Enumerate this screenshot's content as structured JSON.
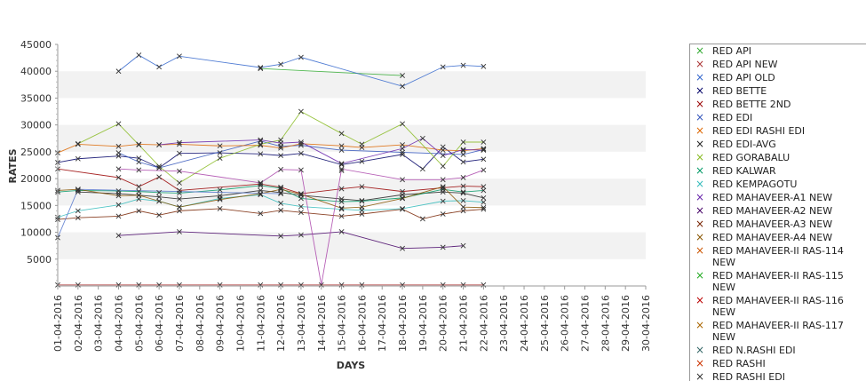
{
  "chart_data": {
    "type": "line",
    "title": "",
    "xlabel": "DAYS",
    "ylabel": "RATES",
    "ylim": [
      0,
      45000
    ],
    "y_ticks": [
      5000,
      10000,
      15000,
      20000,
      25000,
      30000,
      35000,
      40000,
      45000
    ],
    "grid": "alternating horizontal bands",
    "legend_position": "right",
    "marker": "x",
    "categories": [
      "01-04-2016",
      "02-04-2016",
      "03-04-2016",
      "04-04-2016",
      "05-04-2016",
      "06-04-2016",
      "07-04-2016",
      "08-04-2016",
      "09-04-2016",
      "10-04-2016",
      "11-04-2016",
      "12-04-2016",
      "13-04-2016",
      "14-04-2016",
      "15-04-2016",
      "16-04-2016",
      "17-04-2016",
      "18-04-2016",
      "19-04-2016",
      "20-04-2016",
      "21-04-2016",
      "22-04-2016",
      "23-04-2016",
      "24-04-2016",
      "25-04-2016",
      "26-04-2016",
      "27-04-2016",
      "28-04-2016",
      "29-04-2016",
      "30-04-2016"
    ],
    "series": [
      {
        "name": "RED API",
        "color": "#33aa33",
        "values": [
          null,
          null,
          null,
          null,
          null,
          null,
          null,
          null,
          null,
          null,
          40500,
          null,
          null,
          null,
          null,
          null,
          null,
          39200,
          null,
          null,
          null,
          null,
          null,
          null,
          null,
          null,
          null,
          null,
          null,
          null
        ]
      },
      {
        "name": "RED API NEW",
        "color": "#aa3333",
        "values": [
          200,
          200,
          null,
          200,
          200,
          200,
          200,
          null,
          200,
          null,
          200,
          200,
          200,
          null,
          200,
          200,
          null,
          200,
          null,
          200,
          200,
          200,
          null,
          null,
          null,
          null,
          null,
          null,
          null,
          null
        ]
      },
      {
        "name": "RED API OLD",
        "color": "#3366cc",
        "values": [
          null,
          null,
          null,
          40000,
          43000,
          40800,
          42800,
          null,
          null,
          null,
          40700,
          41300,
          42600,
          null,
          null,
          null,
          null,
          37200,
          null,
          40800,
          41100,
          40900,
          null,
          null,
          null,
          null,
          null,
          null,
          null,
          null
        ]
      },
      {
        "name": "RED BETTE",
        "color": "#000066",
        "values": [
          23000,
          23700,
          null,
          24200,
          23800,
          22000,
          24700,
          null,
          24800,
          null,
          24600,
          24300,
          24700,
          null,
          22600,
          23200,
          null,
          24500,
          21800,
          25900,
          23100,
          23600,
          null,
          null,
          null,
          null,
          null,
          null,
          null,
          null
        ]
      },
      {
        "name": "RED BETTE 2ND",
        "color": "#990000",
        "values": [
          21800,
          null,
          null,
          20200,
          18500,
          20300,
          17800,
          null,
          null,
          null,
          19000,
          18400,
          17200,
          null,
          18100,
          18500,
          null,
          17600,
          null,
          18300,
          18600,
          18500,
          null,
          null,
          null,
          null,
          null,
          null,
          null,
          null
        ]
      },
      {
        "name": "RED EDI",
        "color": "#3355bb",
        "values": [
          null,
          null,
          null,
          24800,
          23100,
          22000,
          null,
          null,
          null,
          null,
          27000,
          26000,
          26200,
          null,
          25300,
          null,
          null,
          24900,
          null,
          null,
          24500,
          25400,
          null,
          null,
          null,
          null,
          null,
          null,
          null,
          null
        ]
      },
      {
        "name": "RED EDI RASHI EDI",
        "color": "#dd6600",
        "values": [
          24800,
          26400,
          null,
          26000,
          26400,
          26300,
          26400,
          null,
          26100,
          null,
          26200,
          25700,
          26500,
          null,
          26100,
          25800,
          null,
          26300,
          null,
          25300,
          25200,
          25600,
          null,
          null,
          null,
          null,
          null,
          null,
          null,
          null
        ]
      },
      {
        "name": "RED EDI-AVG",
        "color": "#222222",
        "values": [
          null,
          17500,
          null,
          17200,
          16900,
          16600,
          16200,
          null,
          16800,
          null,
          17800,
          17400,
          16900,
          null,
          16200,
          15900,
          null,
          17000,
          null,
          17500,
          17300,
          16400,
          null,
          null,
          null,
          null,
          null,
          null,
          null,
          null
        ]
      },
      {
        "name": "RED GORABALU",
        "color": "#88bb22",
        "values": [
          null,
          26500,
          null,
          30200,
          26300,
          22300,
          19200,
          null,
          23800,
          null,
          26400,
          27200,
          32500,
          null,
          28400,
          26400,
          null,
          30200,
          null,
          22300,
          26800,
          26800,
          null,
          null,
          null,
          null,
          null,
          null,
          null,
          null
        ]
      },
      {
        "name": "RED KALWAR",
        "color": "#009966",
        "values": [
          17500,
          17800,
          null,
          17700,
          17600,
          17400,
          17300,
          null,
          17900,
          null,
          18700,
          18200,
          16300,
          null,
          15700,
          15800,
          null,
          16400,
          null,
          18000,
          17500,
          17800,
          null,
          null,
          null,
          null,
          null,
          null,
          null,
          null
        ]
      },
      {
        "name": "RED KEMPAGOTU",
        "color": "#33bbbb",
        "values": [
          12800,
          14000,
          null,
          15100,
          16200,
          15800,
          14700,
          null,
          16300,
          null,
          17000,
          15400,
          14800,
          null,
          14300,
          14100,
          null,
          14400,
          null,
          15800,
          15900,
          15600,
          null,
          null,
          null,
          null,
          null,
          null,
          null,
          null
        ]
      },
      {
        "name": "RED MAHAVEER-A1 NEW",
        "color": "#6622aa",
        "values": [
          null,
          null,
          null,
          null,
          null,
          26300,
          26700,
          null,
          null,
          null,
          27200,
          26600,
          26800,
          null,
          22800,
          null,
          null,
          25600,
          27500,
          24300,
          25400,
          25300,
          null,
          null,
          null,
          null,
          null,
          null,
          null,
          null
        ]
      },
      {
        "name": "RED MAHAVEER-A2 NEW",
        "color": "#440066",
        "values": [
          null,
          null,
          null,
          9400,
          null,
          null,
          10100,
          null,
          null,
          null,
          null,
          9300,
          9500,
          null,
          10100,
          null,
          null,
          7000,
          null,
          7200,
          7500,
          null,
          null,
          null,
          null,
          null,
          null,
          null,
          null,
          null
        ]
      },
      {
        "name": "RED MAHAVEER-A3 NEW",
        "color": "#772200",
        "values": [
          12400,
          12700,
          null,
          13000,
          14000,
          13200,
          14000,
          null,
          14400,
          null,
          13500,
          14100,
          13700,
          null,
          13000,
          13400,
          null,
          14300,
          12500,
          13400,
          14000,
          14300,
          null,
          null,
          null,
          null,
          null,
          null,
          null,
          null
        ]
      },
      {
        "name": "RED MAHAVEER-A4 NEW",
        "color": "#885500",
        "values": [
          17800,
          18000,
          null,
          16800,
          16900,
          15800,
          14700,
          null,
          16100,
          null,
          17200,
          18000,
          17100,
          null,
          14500,
          14700,
          null,
          16300,
          null,
          18500,
          14700,
          14600,
          null,
          null,
          null,
          null,
          null,
          null,
          null,
          null
        ]
      },
      {
        "name": "RED MAHAVEER-II RAS-114 NEW",
        "color": "#cc5500",
        "values": [
          null,
          null,
          null,
          null,
          null,
          null,
          null,
          null,
          null,
          null,
          null,
          null,
          null,
          null,
          null,
          null,
          null,
          null,
          null,
          null,
          null,
          null,
          null,
          null,
          null,
          null,
          null,
          null,
          null,
          null
        ]
      },
      {
        "name": "RED MAHAVEER-II RAS-115 NEW",
        "color": "#22aa22",
        "values": [
          null,
          null,
          null,
          null,
          null,
          null,
          null,
          null,
          null,
          null,
          null,
          null,
          null,
          null,
          null,
          null,
          null,
          null,
          null,
          null,
          null,
          null,
          null,
          null,
          null,
          null,
          null,
          null,
          null,
          null
        ]
      },
      {
        "name": "RED MAHAVEER-II RAS-116 NEW",
        "color": "#bb0000",
        "values": [
          null,
          null,
          null,
          null,
          null,
          null,
          null,
          null,
          null,
          null,
          null,
          null,
          null,
          null,
          null,
          null,
          null,
          null,
          null,
          null,
          null,
          null,
          null,
          null,
          null,
          null,
          null,
          null,
          null,
          null
        ]
      },
      {
        "name": "RED MAHAVEER-II RAS-117 NEW",
        "color": "#aa6600",
        "values": [
          null,
          null,
          null,
          null,
          null,
          null,
          null,
          null,
          null,
          null,
          null,
          null,
          null,
          null,
          null,
          null,
          null,
          null,
          null,
          null,
          null,
          null,
          null,
          null,
          null,
          null,
          null,
          null,
          null,
          null
        ]
      },
      {
        "name": "RED N.RASHI EDI",
        "color": "#336666",
        "values": [
          null,
          null,
          null,
          null,
          null,
          null,
          null,
          null,
          null,
          null,
          null,
          null,
          null,
          null,
          null,
          null,
          null,
          null,
          null,
          null,
          null,
          null,
          null,
          null,
          null,
          null,
          null,
          null,
          null,
          null
        ]
      },
      {
        "name": "RED RASHI",
        "color": "#cc3300",
        "values": [
          null,
          null,
          null,
          null,
          null,
          null,
          null,
          null,
          null,
          null,
          null,
          null,
          null,
          null,
          null,
          null,
          null,
          null,
          null,
          null,
          null,
          null,
          null,
          null,
          null,
          null,
          null,
          null,
          null,
          null
        ]
      },
      {
        "name": "RED RASHI EDI",
        "color": "#333333",
        "values": [
          null,
          null,
          null,
          null,
          null,
          null,
          null,
          null,
          null,
          null,
          null,
          null,
          null,
          null,
          null,
          null,
          null,
          null,
          null,
          null,
          null,
          null,
          null,
          null,
          null,
          null,
          null,
          null,
          null,
          null
        ]
      },
      {
        "name": "",
        "color": "#aa44aa",
        "values": [
          null,
          null,
          null,
          21800,
          21600,
          null,
          21400,
          null,
          null,
          null,
          19200,
          21700,
          21600,
          200,
          21800,
          null,
          null,
          19800,
          null,
          19800,
          20200,
          21600,
          null,
          null,
          null,
          null,
          null,
          null,
          null,
          null
        ]
      },
      {
        "name": "",
        "color": "#5577cc",
        "values": [
          9000,
          18000,
          null,
          null,
          null,
          null,
          null,
          null,
          null,
          null,
          null,
          17200,
          null,
          null,
          null,
          null,
          null,
          null,
          null,
          null,
          null,
          null,
          null,
          null,
          null,
          null,
          null,
          null,
          null,
          null
        ]
      },
      {
        "name": "",
        "color": "#cc66aa",
        "values": [
          null,
          null,
          null,
          null,
          null,
          null,
          null,
          null,
          null,
          null,
          null,
          null,
          null,
          null,
          21500,
          null,
          null,
          null,
          null,
          null,
          null,
          null,
          null,
          null,
          null,
          null,
          null,
          null,
          null,
          null
        ]
      }
    ]
  }
}
